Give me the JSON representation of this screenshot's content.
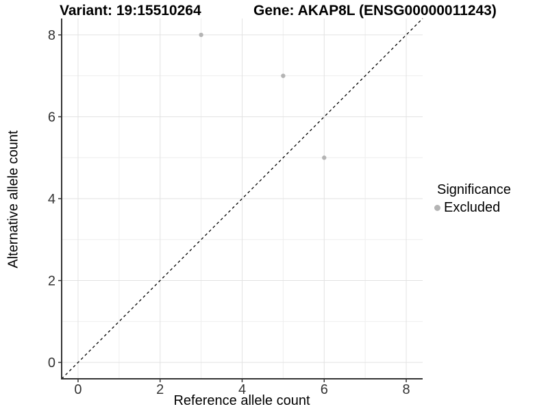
{
  "titles": {
    "left": "Variant: 19:15510264",
    "right": "Gene: AKAP8L (ENSG00000011243)"
  },
  "chart_data": {
    "type": "scatter",
    "title_left": "Variant: 19:15510264",
    "title_right": "Gene: AKAP8L (ENSG00000011243)",
    "xlabel": "Reference allele count",
    "ylabel": "Alternative allele count",
    "xlim": [
      -0.4,
      8.4
    ],
    "ylim": [
      -0.4,
      8.4
    ],
    "xticks": [
      0,
      2,
      4,
      6,
      8
    ],
    "yticks": [
      0,
      2,
      4,
      6,
      8
    ],
    "minor_gridlines": [
      1,
      3,
      5,
      7
    ],
    "grid": true,
    "legend_position": "right",
    "series": [
      {
        "name": "Excluded",
        "color": "#b4b4b4",
        "points": [
          [
            3,
            8
          ],
          [
            5,
            7
          ],
          [
            6,
            5
          ]
        ]
      }
    ],
    "reference_line": {
      "type": "identity",
      "style": "dashed",
      "color": "#000000",
      "from": [
        -0.4,
        -0.4
      ],
      "to": [
        8.4,
        8.4
      ]
    },
    "legend": {
      "title": "Significance",
      "items": [
        {
          "label": "Excluded",
          "color": "#b4b4b4"
        }
      ]
    }
  },
  "colors": {
    "grid_major": "#e2e2e2",
    "grid_minor": "#eeeeee",
    "axis_line": "#333333",
    "tick_label": "#333333",
    "point": "#b4b4b4"
  }
}
